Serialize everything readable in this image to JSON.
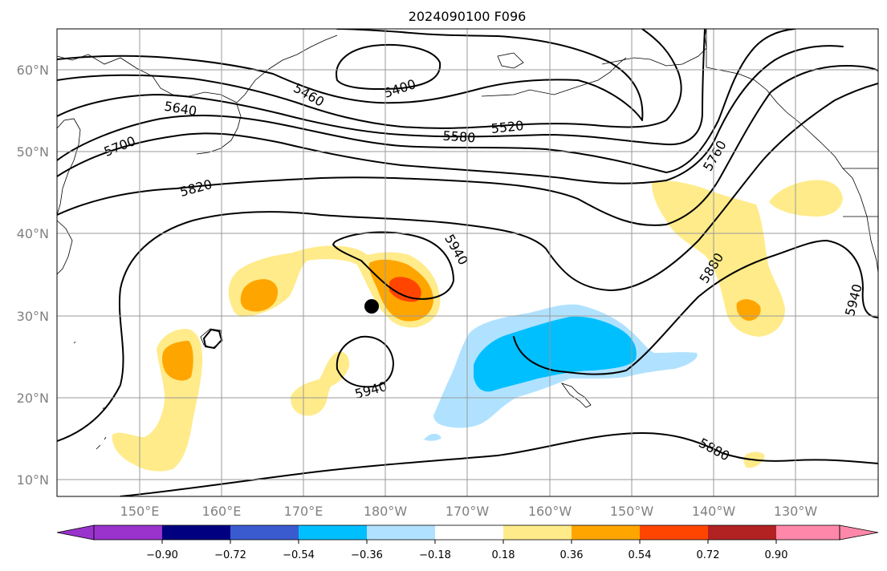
{
  "title": "2024090100 F096",
  "latitude_labels": [
    "60°N",
    "50°N",
    "40°N",
    "30°N",
    "20°N",
    "10°N"
  ],
  "longitude_labels": [
    "150°E",
    "160°E",
    "170°E",
    "180°W",
    "170°W",
    "160°W",
    "150°W",
    "140°W",
    "130°W"
  ],
  "contour_labels": [
    "5400",
    "5460",
    "5520",
    "5580",
    "5640",
    "5700",
    "5760",
    "5820",
    "5880",
    "5880",
    "5940",
    "5940",
    "5940"
  ],
  "colorbar": {
    "tick_labels": [
      "−0.90",
      "−0.72",
      "−0.54",
      "−0.36",
      "−0.18",
      "0.18",
      "0.36",
      "0.54",
      "0.72",
      "0.90"
    ],
    "colors": [
      "#9933cc",
      "#000080",
      "#3a5bd0",
      "#00bfff",
      "#b0e2ff",
      "#ffffff",
      "#ffeb8a",
      "#ffa500",
      "#ff4500",
      "#b22222",
      "#ff88aa"
    ]
  },
  "fill_colors": {
    "pos_1": "#ffeb8a",
    "pos_2": "#ffa500",
    "pos_3": "#ff4500",
    "neg_1": "#b0e2ff",
    "neg_2": "#00bfff"
  }
}
